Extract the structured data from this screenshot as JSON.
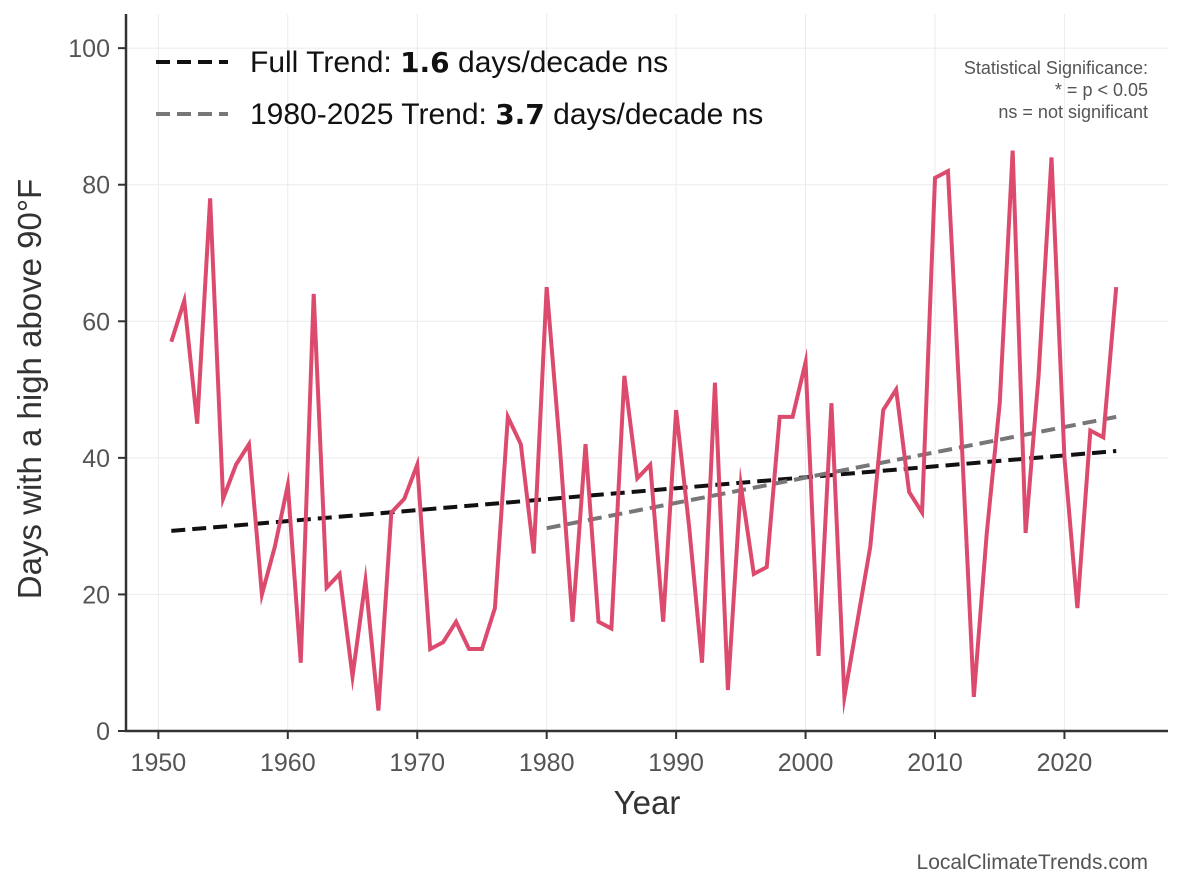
{
  "chart_data": {
    "type": "line",
    "title": "",
    "xlabel": "Year",
    "ylabel": "Days with a high above 90°F",
    "xlim": [
      1947.5,
      2028
    ],
    "ylim": [
      0,
      105
    ],
    "xticks": [
      1950,
      1960,
      1970,
      1980,
      1990,
      2000,
      2010,
      2020
    ],
    "yticks": [
      0,
      20,
      40,
      60,
      80,
      100
    ],
    "grid": true,
    "legend_position": "top-left",
    "series": [
      {
        "kind": "line",
        "color": "#dc4b6e",
        "x": [
          1951,
          1952,
          1953,
          1954,
          1955,
          1956,
          1957,
          1958,
          1959,
          1960,
          1961,
          1962,
          1963,
          1964,
          1965,
          1966,
          1967,
          1968,
          1969,
          1970,
          1971,
          1972,
          1973,
          1974,
          1975,
          1976,
          1977,
          1978,
          1979,
          1980,
          1981,
          1982,
          1983,
          1984,
          1985,
          1986,
          1987,
          1988,
          1989,
          1990,
          1991,
          1992,
          1993,
          1994,
          1995,
          1996,
          1997,
          1998,
          1999,
          2000,
          2001,
          2002,
          2003,
          2004,
          2005,
          2006,
          2007,
          2008,
          2009,
          2010,
          2011,
          2012,
          2013,
          2014,
          2015,
          2016,
          2017,
          2018,
          2019,
          2020,
          2021,
          2022,
          2023,
          2024
        ],
        "y": [
          57,
          63,
          45,
          78,
          34,
          39,
          42,
          20,
          27,
          36,
          10,
          64,
          21,
          23,
          8,
          22,
          3,
          32,
          34,
          39,
          12,
          13,
          16,
          12,
          12,
          18,
          46,
          42,
          26,
          65,
          42,
          16,
          42,
          16,
          15,
          52,
          37,
          39,
          16,
          47,
          30,
          10,
          51,
          6,
          36,
          23,
          24,
          46,
          46,
          54,
          11,
          48,
          5,
          16,
          27,
          47,
          50,
          35,
          32,
          81,
          82,
          45,
          5,
          29,
          48,
          85,
          29,
          52,
          84,
          40,
          18,
          44,
          43,
          65
        ]
      },
      {
        "name": "Full Trend",
        "kind": "trend",
        "color": "#111111",
        "dash": "dashed",
        "x": [
          1951,
          2024
        ],
        "y": [
          29.3,
          41.0
        ]
      },
      {
        "name": "1980-2025 Trend",
        "kind": "trend",
        "color": "#777777",
        "dash": "dashed",
        "x": [
          1980,
          2024
        ],
        "y": [
          29.7,
          46.0
        ]
      }
    ],
    "legend": [
      {
        "prefix": "Full Trend: ",
        "value": "1.6",
        "suffix": " days/decade ns",
        "color": "#111111"
      },
      {
        "prefix": "1980-2025 Trend: ",
        "value": "3.7",
        "suffix": " days/decade ns",
        "color": "#777777"
      }
    ],
    "annotation": [
      "Statistical Significance:",
      "* = p < 0.05",
      "ns = not significant"
    ],
    "credit": "LocalClimateTrends.com"
  }
}
